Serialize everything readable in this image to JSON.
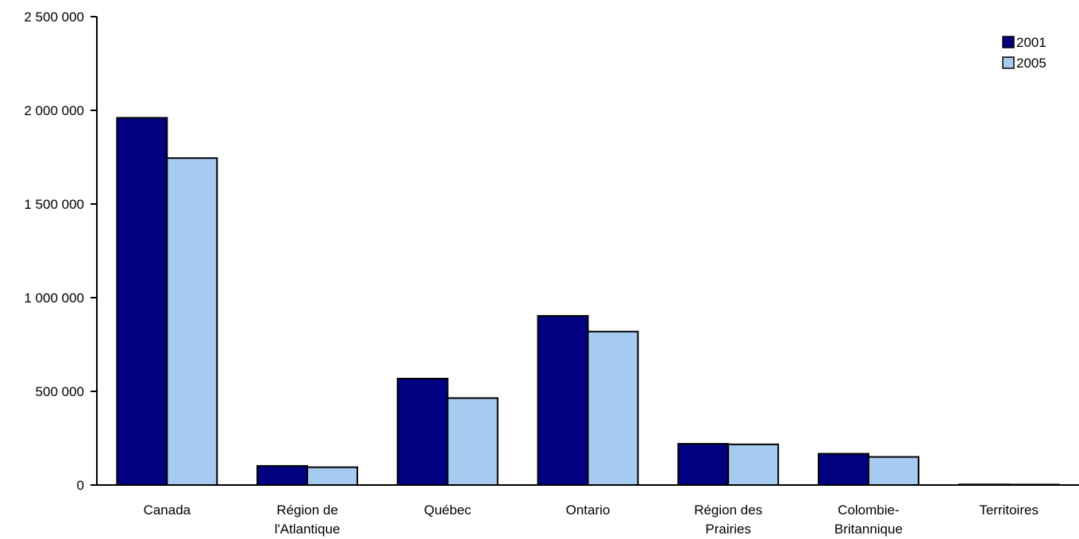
{
  "chart_data": {
    "type": "bar",
    "categories": [
      [
        "Canada"
      ],
      [
        "Région de",
        "l'Atlantique"
      ],
      [
        "Québec"
      ],
      [
        "Ontario"
      ],
      [
        "Région des",
        "Prairies"
      ],
      [
        "Colombie-",
        "Britannique"
      ],
      [
        "Territoires"
      ]
    ],
    "series": [
      {
        "name": "2001",
        "color": "#000080",
        "values": [
          1960000,
          102000,
          568000,
          903000,
          220000,
          167000,
          3000
        ]
      },
      {
        "name": "2005",
        "color": "#a6caf0",
        "values": [
          1745000,
          95000,
          464000,
          819000,
          217000,
          150000,
          2500
        ]
      }
    ],
    "ylim": [
      0,
      2500000
    ],
    "yticks": [
      0,
      500000,
      1000000,
      1500000,
      2000000,
      2500000
    ],
    "ytick_labels": [
      "0",
      "500 000",
      "1 000 000",
      "1 500 000",
      "2 000 000",
      "2 500 000"
    ],
    "legend": {
      "position": "top-right"
    },
    "grid": false
  }
}
